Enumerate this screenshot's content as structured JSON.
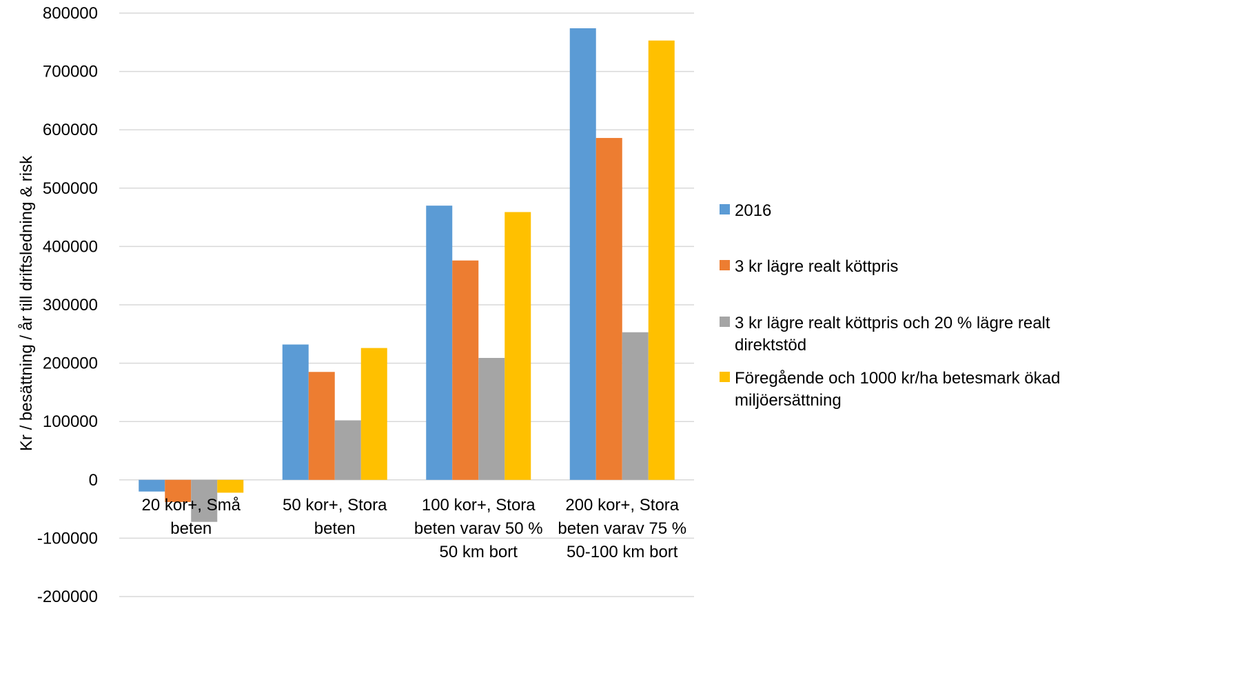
{
  "chart_data": {
    "type": "bar",
    "title": "",
    "xlabel": "",
    "ylabel": "Kr / besättning / år till driftsledning & risk",
    "ylim": [
      -200000,
      800000
    ],
    "yticks": [
      -200000,
      -100000,
      0,
      100000,
      200000,
      300000,
      400000,
      500000,
      600000,
      700000,
      800000
    ],
    "grid": true,
    "legend_position": "right",
    "categories": [
      [
        "20 kor+, Små",
        "beten"
      ],
      [
        "50 kor+, Stora",
        "beten"
      ],
      [
        "100 kor+, Stora",
        "beten varav 50 %",
        "50 km bort"
      ],
      [
        "200 kor+, Stora",
        "beten varav 75 %",
        "50-100 km bort"
      ]
    ],
    "series": [
      {
        "name": "2016",
        "color": "#5b9bd5",
        "values": [
          -20000,
          232000,
          470000,
          774000
        ]
      },
      {
        "name": "3 kr lägre realt köttpris",
        "color": "#ed7d31",
        "values": [
          -38000,
          185000,
          376000,
          586000
        ]
      },
      {
        "name": "3 kr lägre realt köttpris och 20 % lägre realt direktstöd",
        "color": "#a5a5a5",
        "values": [
          -72000,
          102000,
          209000,
          253000
        ]
      },
      {
        "name": "Föregående och 1000 kr/ha betesmark ökad miljöersättning",
        "color": "#ffc000",
        "values": [
          -22000,
          226000,
          459000,
          753000
        ]
      }
    ],
    "legend_lines": [
      [
        "2016"
      ],
      [
        "3 kr lägre realt köttpris"
      ],
      [
        "3 kr lägre realt köttpris och 20 % lägre realt",
        "direktstöd"
      ],
      [
        "Föregående och 1000 kr/ha betesmark ökad",
        "miljöersättning"
      ]
    ]
  }
}
